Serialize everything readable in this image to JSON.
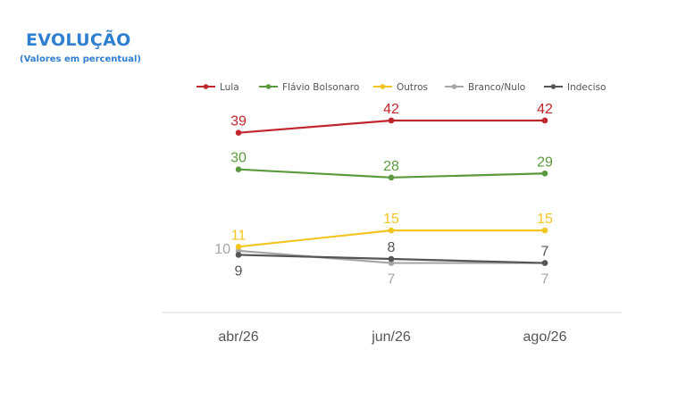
{
  "header": {
    "title": "EVOLUÇÃO",
    "subtitle": "(Valores em percentual)"
  },
  "chart_data": {
    "type": "line",
    "x": [
      "abr/26",
      "jun/26",
      "ago/26"
    ],
    "series": [
      {
        "name": "Lula",
        "values": [
          39,
          42,
          42
        ],
        "color": "#c0272d"
      },
      {
        "name": "Flávio Bolsonaro",
        "values": [
          30,
          28,
          29
        ],
        "color": "#5b9a3c"
      },
      {
        "name": "Outros",
        "values": [
          11,
          15,
          15
        ],
        "color": "#f2c521"
      },
      {
        "name": "Branco/Nulo",
        "values": [
          10,
          7,
          7
        ],
        "color": "#a6a6a6"
      },
      {
        "name": "Indeciso",
        "values": [
          9,
          8,
          7
        ],
        "color": "#555555"
      }
    ],
    "ylim": [
      0,
      45
    ],
    "grid": false,
    "legend_position": "top"
  }
}
